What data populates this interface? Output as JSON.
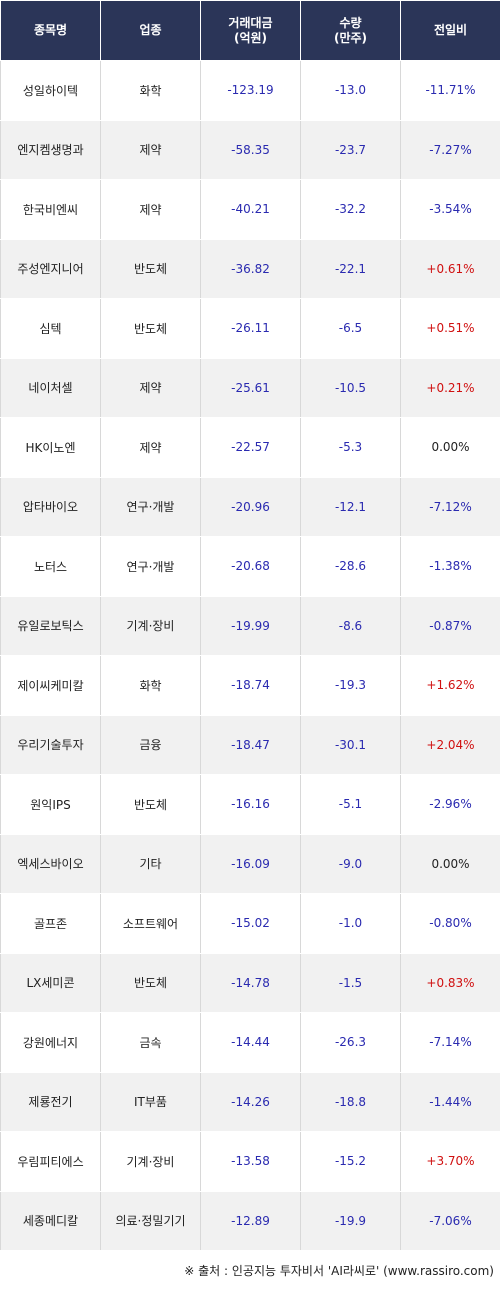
{
  "headers": {
    "name": "종목명",
    "sector": "업종",
    "amount": "거래대금\n(억원)",
    "volume": "수량\n(만주)",
    "change": "전일비"
  },
  "rows": [
    {
      "name": "성일하이텍",
      "sector": "화학",
      "amount": "-123.19",
      "volume": "-13.0",
      "change": "-11.71%"
    },
    {
      "name": "엔지켐생명과",
      "sector": "제약",
      "amount": "-58.35",
      "volume": "-23.7",
      "change": "-7.27%"
    },
    {
      "name": "한국비엔씨",
      "sector": "제약",
      "amount": "-40.21",
      "volume": "-32.2",
      "change": "-3.54%"
    },
    {
      "name": "주성엔지니어",
      "sector": "반도체",
      "amount": "-36.82",
      "volume": "-22.1",
      "change": "+0.61%"
    },
    {
      "name": "심텍",
      "sector": "반도체",
      "amount": "-26.11",
      "volume": "-6.5",
      "change": "+0.51%"
    },
    {
      "name": "네이처셀",
      "sector": "제약",
      "amount": "-25.61",
      "volume": "-10.5",
      "change": "+0.21%"
    },
    {
      "name": "HK이노엔",
      "sector": "제약",
      "amount": "-22.57",
      "volume": "-5.3",
      "change": "0.00%"
    },
    {
      "name": "압타바이오",
      "sector": "연구·개발",
      "amount": "-20.96",
      "volume": "-12.1",
      "change": "-7.12%"
    },
    {
      "name": "노터스",
      "sector": "연구·개발",
      "amount": "-20.68",
      "volume": "-28.6",
      "change": "-1.38%"
    },
    {
      "name": "유일로보틱스",
      "sector": "기계·장비",
      "amount": "-19.99",
      "volume": "-8.6",
      "change": "-0.87%"
    },
    {
      "name": "제이씨케미칼",
      "sector": "화학",
      "amount": "-18.74",
      "volume": "-19.3",
      "change": "+1.62%"
    },
    {
      "name": "우리기술투자",
      "sector": "금융",
      "amount": "-18.47",
      "volume": "-30.1",
      "change": "+2.04%"
    },
    {
      "name": "원익IPS",
      "sector": "반도체",
      "amount": "-16.16",
      "volume": "-5.1",
      "change": "-2.96%"
    },
    {
      "name": "엑세스바이오",
      "sector": "기타",
      "amount": "-16.09",
      "volume": "-9.0",
      "change": "0.00%"
    },
    {
      "name": "골프존",
      "sector": "소프트웨어",
      "amount": "-15.02",
      "volume": "-1.0",
      "change": "-0.80%"
    },
    {
      "name": "LX세미콘",
      "sector": "반도체",
      "amount": "-14.78",
      "volume": "-1.5",
      "change": "+0.83%"
    },
    {
      "name": "강원에너지",
      "sector": "금속",
      "amount": "-14.44",
      "volume": "-26.3",
      "change": "-7.14%"
    },
    {
      "name": "제룡전기",
      "sector": "IT부품",
      "amount": "-14.26",
      "volume": "-18.8",
      "change": "-1.44%"
    },
    {
      "name": "우림피티에스",
      "sector": "기계·장비",
      "amount": "-13.58",
      "volume": "-15.2",
      "change": "+3.70%"
    },
    {
      "name": "세종메디칼",
      "sector": "의료·정밀기기",
      "amount": "-12.89",
      "volume": "-19.9",
      "change": "-7.06%"
    }
  ],
  "source": "※ 출처 : 인공지능 투자비서 'AI라씨로' (www.rassiro.com)",
  "colors": {
    "header_bg": "#2b3558",
    "negative": "#2a2ab0",
    "positive": "#d01010"
  }
}
